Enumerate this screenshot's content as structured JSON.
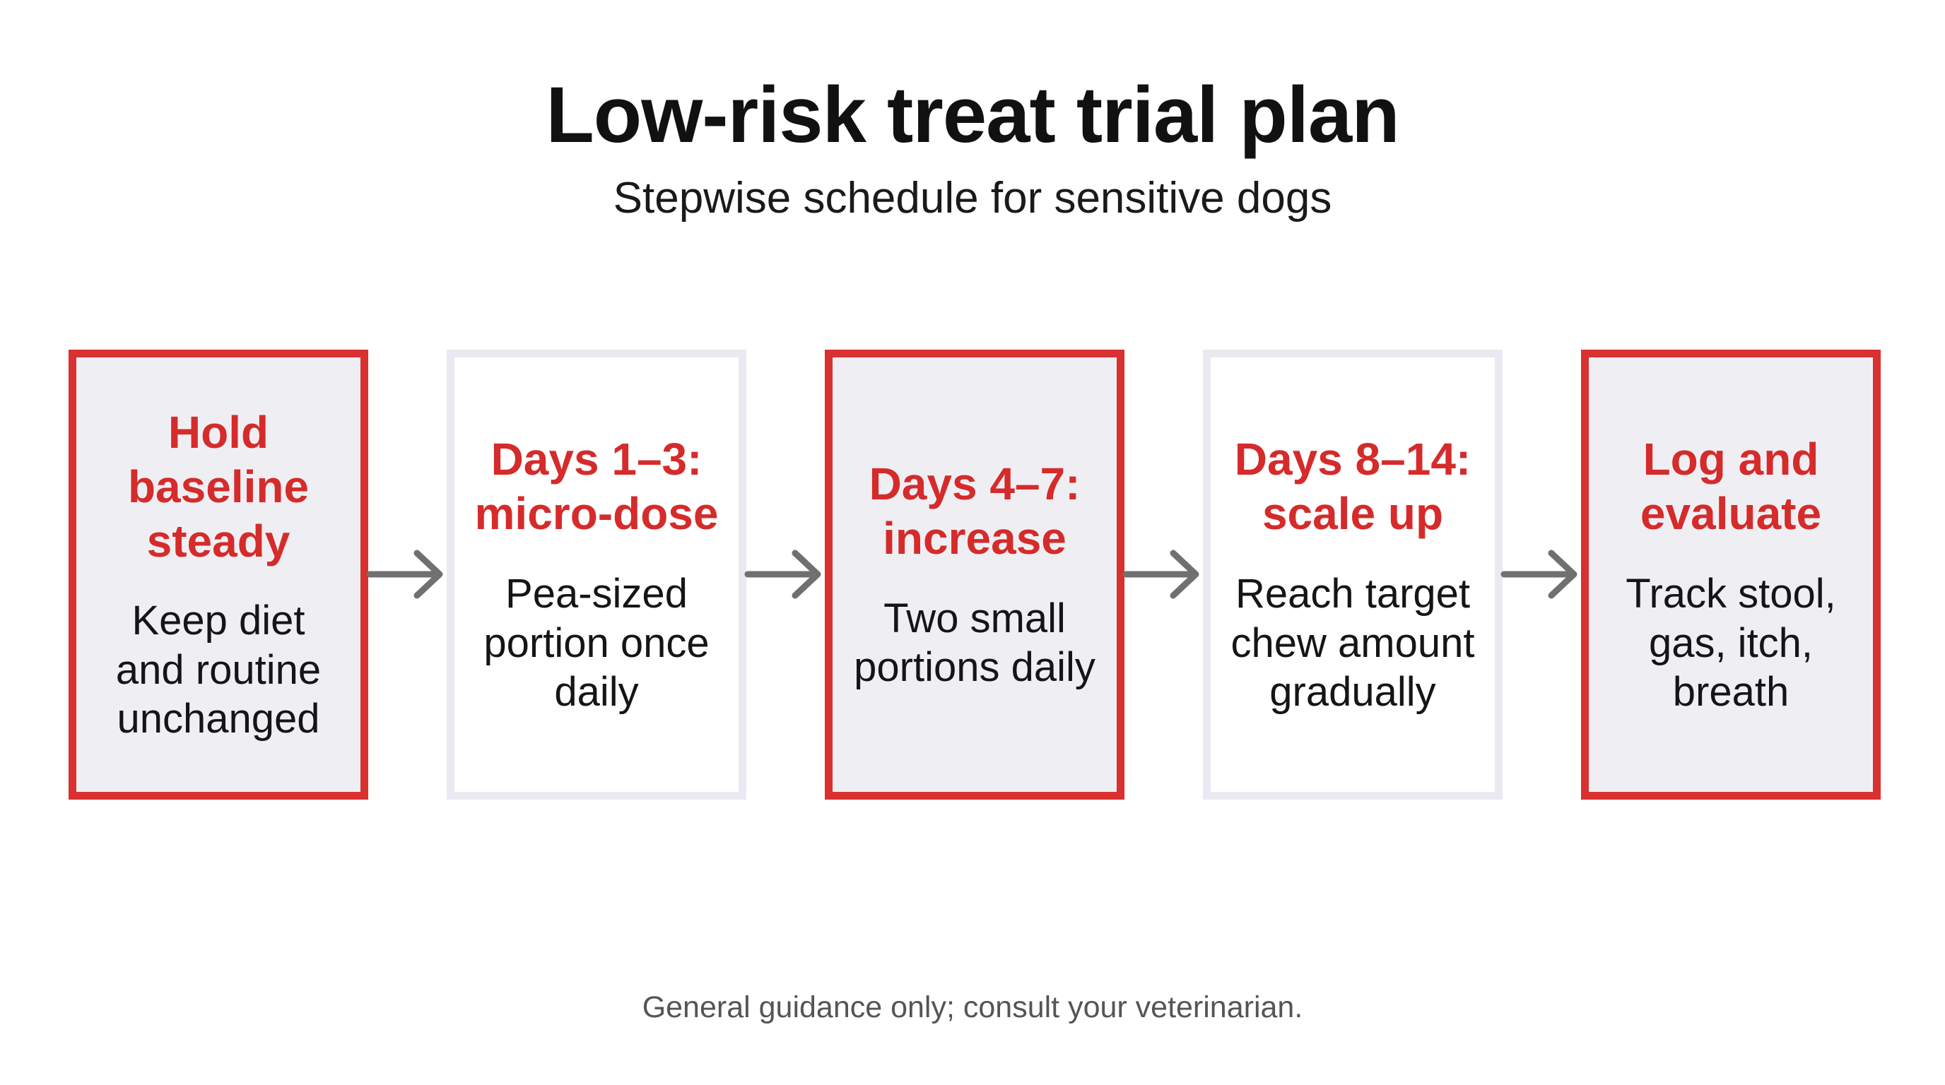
{
  "header": {
    "title": "Low-risk treat trial plan",
    "subtitle": "Stepwise schedule for sensitive dogs"
  },
  "steps": [
    {
      "title": "Hold\nbaseline\nsteady",
      "text": "Keep diet\nand routine\nunchanged"
    },
    {
      "title": "Days 1–3:\nmicro-dose",
      "text": "Pea-sized\nportion once\ndaily"
    },
    {
      "title": "Days 4–7:\nincrease",
      "text": "Two small\nportions daily"
    },
    {
      "title": "Days 8–14:\nscale up",
      "text": "Reach target\nchew amount\ngradually"
    },
    {
      "title": "Log and\nevaluate",
      "text": "Track stool,\ngas, itch,\nbreath"
    }
  ],
  "footer": {
    "note": "General guidance only; consult your veterinarian."
  }
}
